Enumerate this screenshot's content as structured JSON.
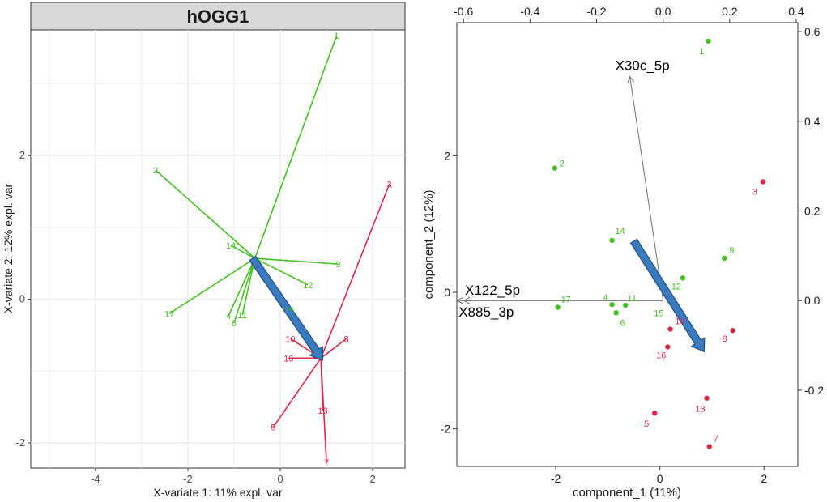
{
  "colors": {
    "green": "#44C021",
    "red": "#DC2747",
    "arrow_fill": "#3A7BC0",
    "arrow_edge": "#1F4E82",
    "loading_line": "#6E6E6E",
    "strip_fill": "#D9D9D9",
    "grid": "#EBEBEB"
  },
  "chart_data": [
    {
      "type": "scatter",
      "subtype": "spider-plot",
      "title": "hOGG1",
      "xlabel": "X-variate 1: 11% expl. var",
      "ylabel": "X-variate 2: 12% expl. var",
      "xlim": [
        -5.4,
        2.7
      ],
      "ylim": [
        -2.35,
        3.75
      ],
      "xticks": [
        -4,
        -2,
        0,
        2
      ],
      "yticks": [
        -2,
        0,
        2
      ],
      "centroids": [
        {
          "group": "green",
          "x": -0.55,
          "y": 0.57
        },
        {
          "group": "red",
          "x": 0.88,
          "y": -0.82
        }
      ],
      "points": [
        {
          "label": "1",
          "group": "green",
          "x": 1.22,
          "y": 3.67
        },
        {
          "label": "2",
          "group": "green",
          "x": -2.7,
          "y": 1.8
        },
        {
          "label": "4",
          "group": "green",
          "x": -1.12,
          "y": -0.23
        },
        {
          "label": "6",
          "group": "green",
          "x": -1.0,
          "y": -0.33
        },
        {
          "label": "9",
          "group": "green",
          "x": 1.25,
          "y": 0.49
        },
        {
          "label": "11",
          "group": "green",
          "x": -0.82,
          "y": -0.22
        },
        {
          "label": "12",
          "group": "green",
          "x": 0.6,
          "y": 0.2
        },
        {
          "label": "14",
          "group": "green",
          "x": -1.07,
          "y": 0.75
        },
        {
          "label": "15",
          "group": "green",
          "x": 0.2,
          "y": -0.15
        },
        {
          "label": "17",
          "group": "green",
          "x": -2.4,
          "y": -0.2
        },
        {
          "label": "3",
          "group": "red",
          "x": 2.36,
          "y": 1.6
        },
        {
          "label": "5",
          "group": "red",
          "x": -0.15,
          "y": -1.78
        },
        {
          "label": "7",
          "group": "red",
          "x": 1.0,
          "y": -2.27
        },
        {
          "label": "8",
          "group": "red",
          "x": 1.43,
          "y": -0.55
        },
        {
          "label": "10",
          "group": "red",
          "x": 0.22,
          "y": -0.55
        },
        {
          "label": "13",
          "group": "red",
          "x": 0.92,
          "y": -1.55
        },
        {
          "label": "16",
          "group": "red",
          "x": 0.18,
          "y": -0.82
        }
      ],
      "arrow": {
        "from": [
          -0.6,
          0.57
        ],
        "to": [
          0.92,
          -0.85
        ]
      }
    },
    {
      "type": "scatter",
      "subtype": "biplot",
      "xlabel": "component_1  (11%)",
      "ylabel": "component_2  (12%)",
      "xlim": [
        -3.9,
        2.65
      ],
      "ylim": [
        -2.55,
        3.95
      ],
      "xticks": [
        -2,
        0,
        2
      ],
      "yticks": [
        -2,
        0,
        2
      ],
      "top_xlim": [
        -0.62,
        0.405
      ],
      "top_xticks": [
        "-0.6",
        "-0.4",
        "-0.2",
        "0.0",
        "0.2",
        "0.4"
      ],
      "top_xtick_values": [
        -0.6,
        -0.4,
        -0.2,
        0.0,
        0.2,
        0.4
      ],
      "right_ylim": [
        -0.37,
        0.62
      ],
      "right_yticks": [
        "-0.2",
        "0.0",
        "0.2",
        "0.4",
        "0.6"
      ],
      "right_ytick_values": [
        -0.2,
        0.0,
        0.2,
        0.4,
        0.6
      ],
      "points": [
        {
          "label": "1",
          "group": "green",
          "x": 0.93,
          "y": 3.68
        },
        {
          "label": "2",
          "group": "green",
          "x": -2.02,
          "y": 1.82
        },
        {
          "label": "4",
          "group": "green",
          "x": -0.92,
          "y": -0.18
        },
        {
          "label": "6",
          "group": "green",
          "x": -0.84,
          "y": -0.3
        },
        {
          "label": "9",
          "group": "green",
          "x": 1.24,
          "y": 0.5
        },
        {
          "label": "11",
          "group": "green",
          "x": -0.66,
          "y": -0.19
        },
        {
          "label": "12",
          "group": "green",
          "x": 0.44,
          "y": 0.21
        },
        {
          "label": "14",
          "group": "green",
          "x": -0.92,
          "y": 0.76
        },
        {
          "label": "17",
          "group": "green",
          "x": -1.96,
          "y": -0.22
        },
        {
          "label": "3",
          "group": "red",
          "x": 1.98,
          "y": 1.62
        },
        {
          "label": "5",
          "group": "red",
          "x": -0.1,
          "y": -1.77
        },
        {
          "label": "7",
          "group": "red",
          "x": 0.95,
          "y": -2.26
        },
        {
          "label": "8",
          "group": "red",
          "x": 1.4,
          "y": -0.56
        },
        {
          "label": "10",
          "group": "red",
          "x": 0.2,
          "y": -0.54
        },
        {
          "label": "13",
          "group": "red",
          "x": 0.9,
          "y": -1.55
        },
        {
          "label": "16",
          "group": "red",
          "x": 0.15,
          "y": -0.8
        }
      ],
      "extra_labels": [
        {
          "label": "15",
          "group": "green",
          "x": -0.02,
          "y": -0.3
        }
      ],
      "loadings": [
        {
          "name": "X30c_5p",
          "x": -0.1,
          "y": 0.5
        },
        {
          "name": "X122_5p",
          "x": -0.62,
          "y": 0.0
        },
        {
          "name": "X885_3p",
          "x": -0.6,
          "y": 0.0
        }
      ],
      "arrow": {
        "from": [
          -0.5,
          0.75
        ],
        "to": [
          0.85,
          -0.87
        ]
      }
    }
  ]
}
